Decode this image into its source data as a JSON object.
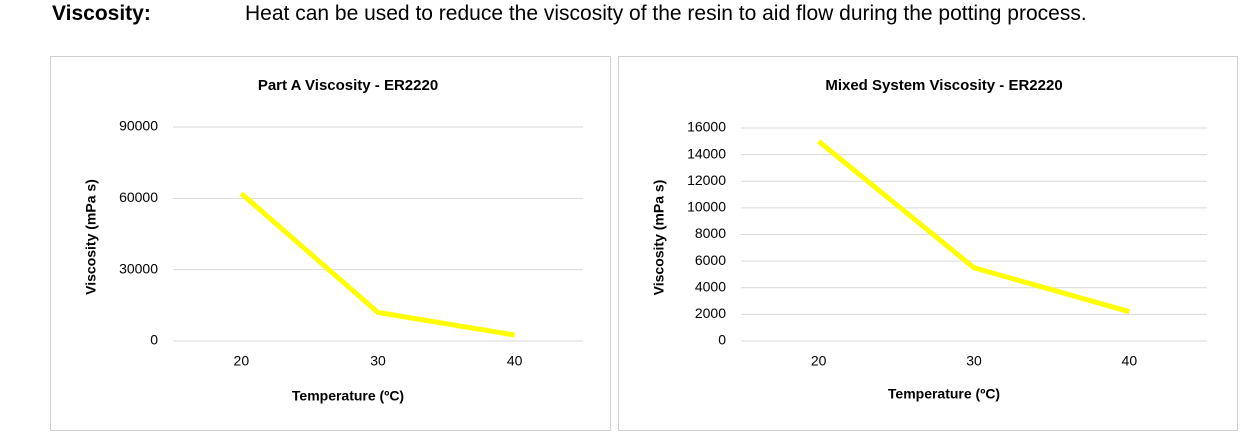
{
  "label": "Viscosity:",
  "text": "Heat can be used to reduce the viscosity of the resin to aid flow during the potting process.",
  "chart_data": [
    {
      "type": "line",
      "title": "Part A Viscosity - ER2220",
      "x_label": "Temperature (ºC)",
      "y_label": "Viscosity (mPa s)",
      "categories": [
        "20",
        "30",
        "40"
      ],
      "values": [
        62000,
        12000,
        2500
      ],
      "color": "#ffff00",
      "ylim": [
        0,
        90000
      ],
      "yticks": [
        0,
        30000,
        60000,
        90000
      ],
      "grid": true
    },
    {
      "type": "line",
      "title": "Mixed System Viscosity - ER2220",
      "x_label": "Temperature (ºC)",
      "y_label": "Viscosity (mPa s)",
      "categories": [
        "20",
        "30",
        "40"
      ],
      "values": [
        15000,
        5500,
        2200
      ],
      "color": "#ffff00",
      "ylim": [
        0,
        16000
      ],
      "yticks": [
        0,
        2000,
        4000,
        6000,
        8000,
        10000,
        12000,
        14000,
        16000
      ],
      "grid": true
    }
  ]
}
